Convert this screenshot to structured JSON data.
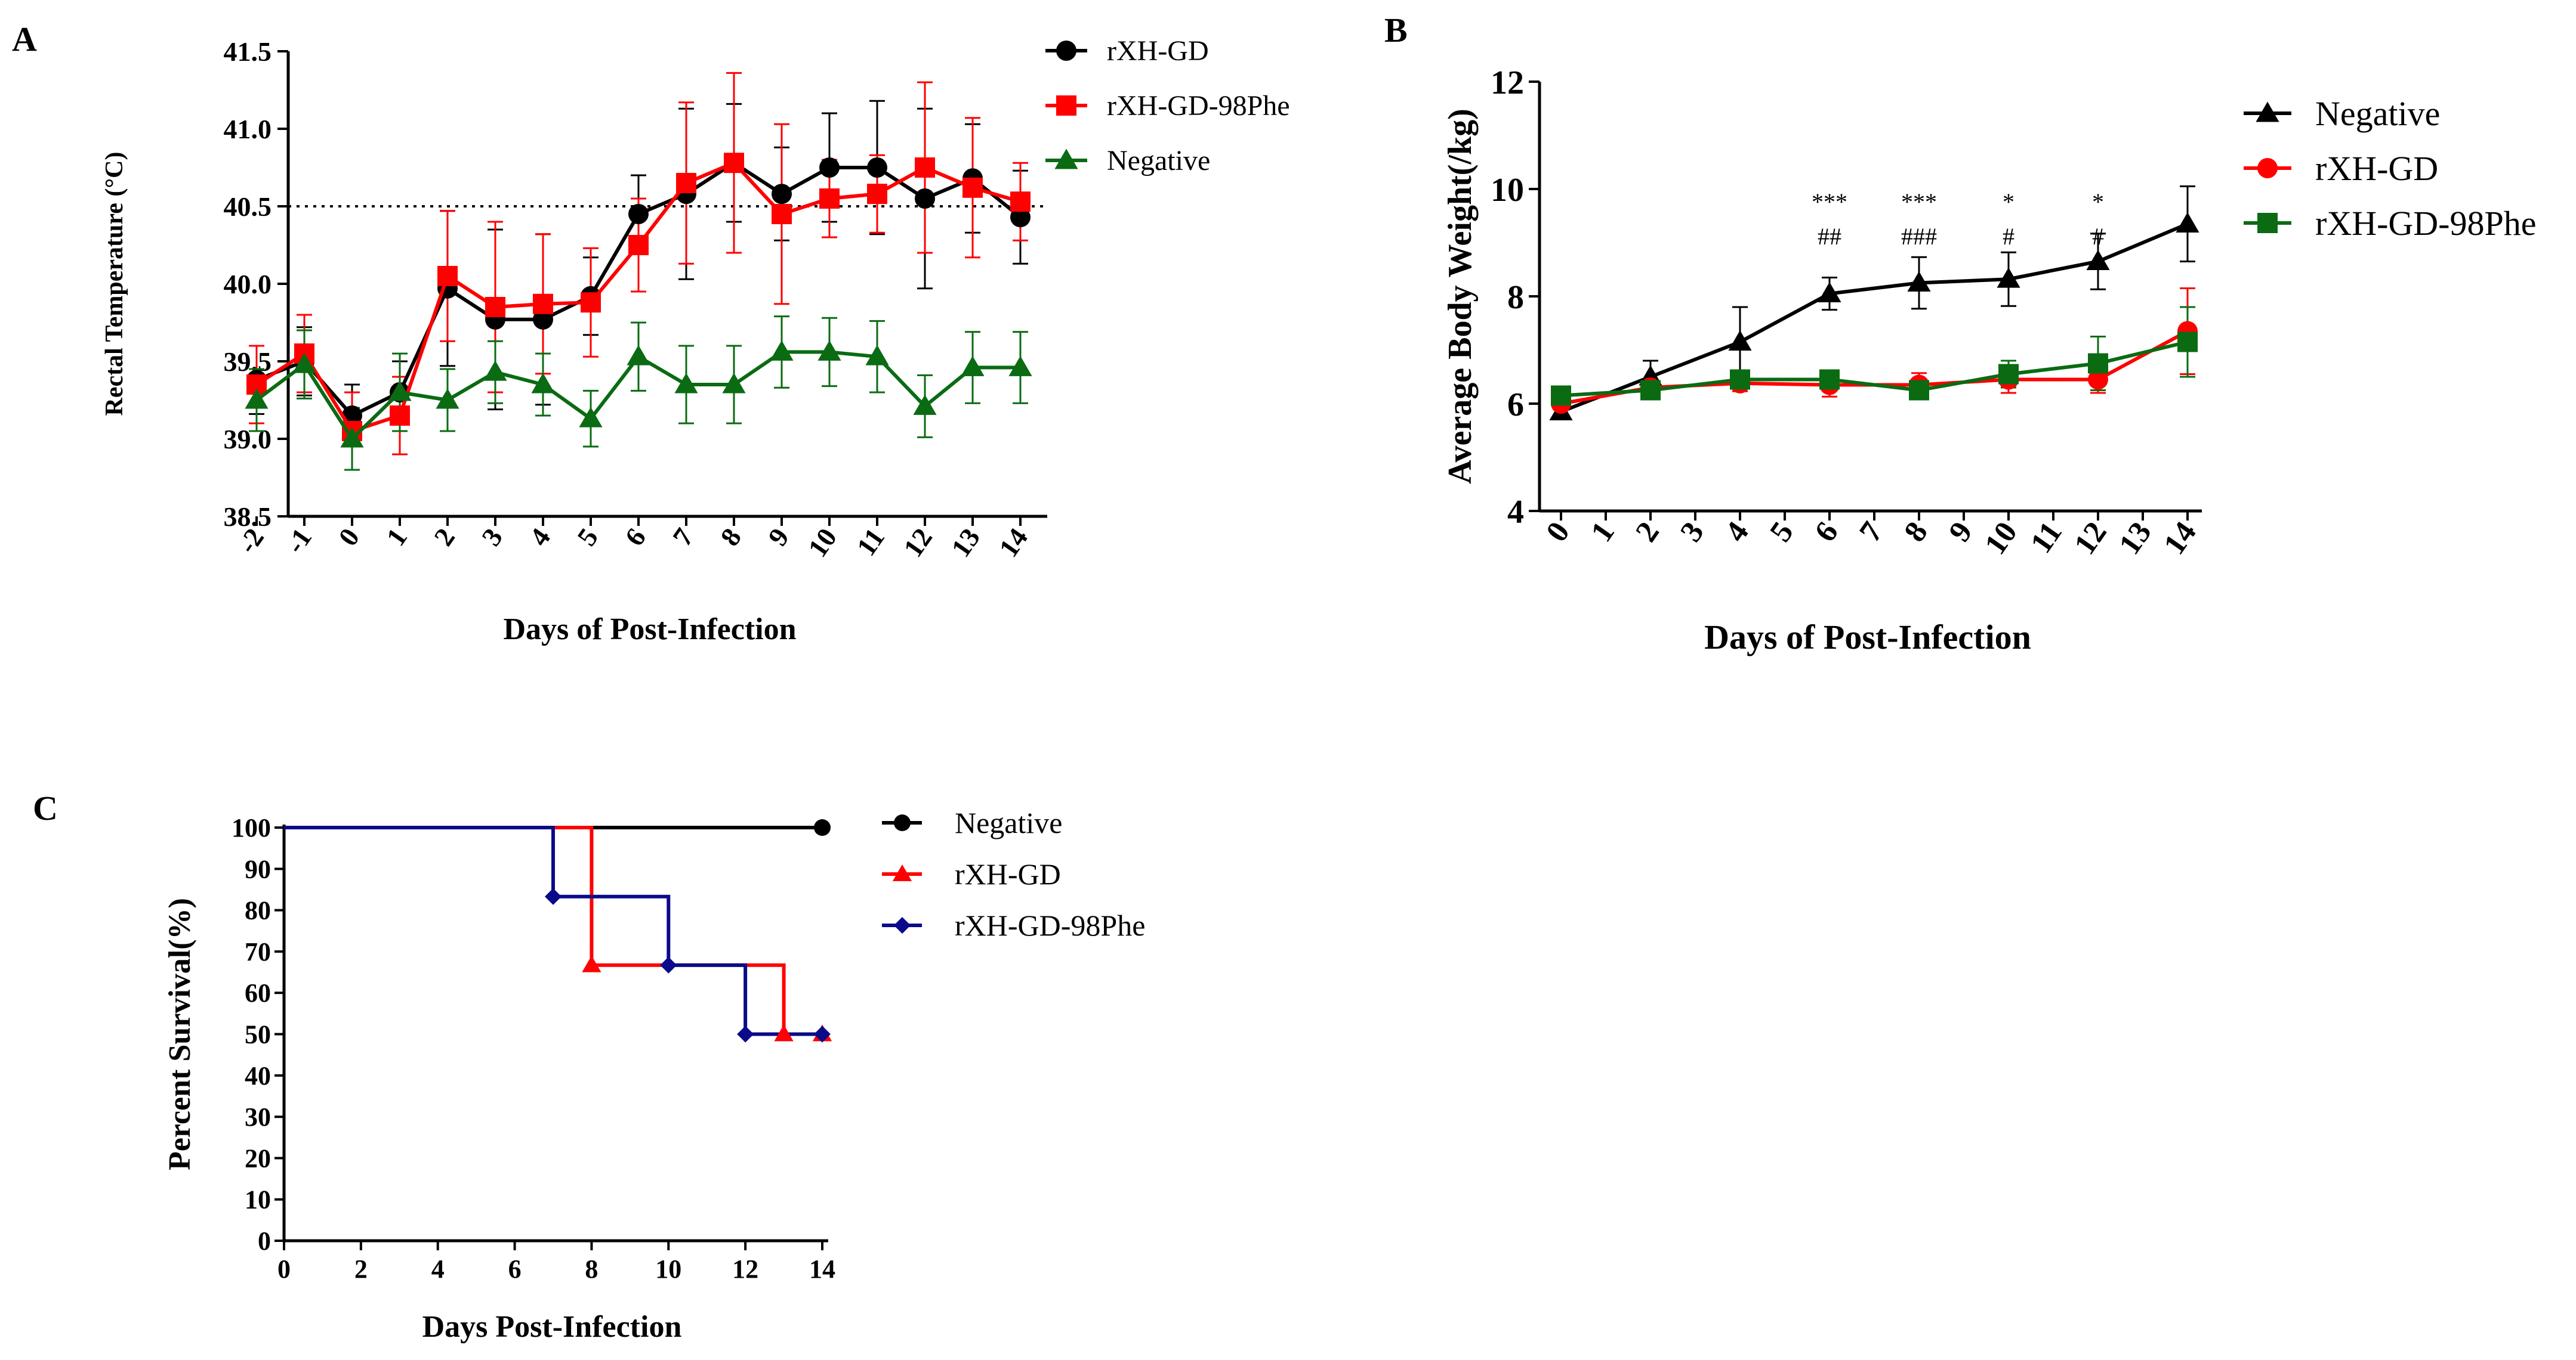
{
  "figure": {
    "colors": {
      "black": "#000000",
      "red": "#ff0000",
      "green": "#0a6b12",
      "navy": "#0a0a8a"
    }
  },
  "chart_data": [
    {
      "panel": "A",
      "type": "line",
      "title": "",
      "xlabel": "Days of Post-Infection",
      "ylabel": "Rectal Temperature (°C)",
      "categories": [
        "-2",
        "-1",
        "0",
        "1",
        "2",
        "3",
        "4",
        "5",
        "6",
        "7",
        "8",
        "9",
        "10",
        "11",
        "12",
        "13",
        "14"
      ],
      "ylim": [
        38.5,
        41.5
      ],
      "yticks": [
        38.5,
        39.0,
        39.5,
        40.0,
        40.5,
        41.0,
        41.5
      ],
      "ytick_labels": [
        "38.5",
        "39.0",
        "39.5",
        "40.0",
        "40.5",
        "41.0",
        "41.5"
      ],
      "reference_line": 40.5,
      "legend_position": "top-right",
      "series": [
        {
          "name": "rXH-GD",
          "color": "#000000",
          "marker": "circle",
          "values": [
            39.38,
            39.5,
            39.15,
            39.3,
            39.97,
            39.77,
            39.77,
            39.92,
            40.45,
            40.58,
            40.78,
            40.58,
            40.75,
            40.75,
            40.55,
            40.68,
            40.43
          ],
          "errors": [
            0.22,
            0.22,
            0.2,
            0.2,
            0.5,
            0.58,
            0.55,
            0.25,
            0.25,
            0.55,
            0.38,
            0.3,
            0.35,
            0.43,
            0.58,
            0.35,
            0.3
          ]
        },
        {
          "name": "rXH-GD-98Phe",
          "color": "#ff0000",
          "marker": "square",
          "values": [
            39.35,
            39.55,
            39.05,
            39.15,
            40.05,
            39.85,
            39.87,
            39.88,
            40.25,
            40.65,
            40.78,
            40.45,
            40.55,
            40.58,
            40.75,
            40.62,
            40.53
          ],
          "errors": [
            0.25,
            0.25,
            0.25,
            0.25,
            0.42,
            0.55,
            0.45,
            0.35,
            0.3,
            0.52,
            0.58,
            0.58,
            0.25,
            0.25,
            0.55,
            0.45,
            0.25
          ]
        },
        {
          "name": "Negative",
          "color": "#0a6b12",
          "marker": "triangle",
          "values": [
            39.25,
            39.48,
            39.0,
            39.3,
            39.25,
            39.43,
            39.35,
            39.13,
            39.53,
            39.35,
            39.35,
            39.56,
            39.56,
            39.53,
            39.21,
            39.46,
            39.46
          ],
          "errors": [
            0.2,
            0.22,
            0.2,
            0.25,
            0.2,
            0.2,
            0.2,
            0.18,
            0.22,
            0.25,
            0.25,
            0.23,
            0.22,
            0.23,
            0.2,
            0.23,
            0.23
          ]
        }
      ]
    },
    {
      "panel": "B",
      "type": "line",
      "title": "",
      "xlabel": "Days of Post-Infection",
      "ylabel": "Average Body Weight(/kg)",
      "categories": [
        "0",
        "1",
        "2",
        "3",
        "4",
        "5",
        "6",
        "7",
        "8",
        "9",
        "10",
        "11",
        "12",
        "13",
        "14"
      ],
      "ylim": [
        4,
        12
      ],
      "yticks": [
        4,
        6,
        8,
        10,
        12
      ],
      "ytick_labels": [
        "4",
        "6",
        "8",
        "10",
        "12"
      ],
      "legend_position": "top-right",
      "annotations": [
        {
          "day": 6,
          "top": "***",
          "bottom": "##"
        },
        {
          "day": 8,
          "top": "***",
          "bottom": "###"
        },
        {
          "day": 10,
          "top": "*",
          "bottom": "#"
        },
        {
          "day": 12,
          "top": "*",
          "bottom": "#"
        }
      ],
      "series": [
        {
          "name": "Negative",
          "color": "#000000",
          "marker": "triangle",
          "x": [
            0,
            2,
            4,
            6,
            8,
            10,
            12,
            14
          ],
          "values": [
            5.85,
            6.5,
            7.15,
            8.05,
            8.25,
            8.32,
            8.65,
            9.35
          ],
          "errors": [
            0.12,
            0.3,
            0.65,
            0.3,
            0.48,
            0.5,
            0.52,
            0.7
          ]
        },
        {
          "name": "rXH-GD",
          "color": "#ff0000",
          "marker": "circle",
          "x": [
            0,
            2,
            4,
            6,
            8,
            10,
            12,
            14
          ],
          "values": [
            6.0,
            6.3,
            6.38,
            6.35,
            6.35,
            6.45,
            6.45,
            7.35
          ],
          "errors": [
            0.1,
            0.15,
            0.15,
            0.22,
            0.22,
            0.25,
            0.25,
            0.8
          ]
        },
        {
          "name": "rXH-GD-98Phe",
          "color": "#0a6b12",
          "marker": "square",
          "x": [
            0,
            2,
            4,
            6,
            8,
            10,
            12,
            14
          ],
          "values": [
            6.15,
            6.25,
            6.45,
            6.45,
            6.25,
            6.55,
            6.75,
            7.15
          ],
          "errors": [
            0.1,
            0.12,
            0.12,
            0.12,
            0.1,
            0.25,
            0.5,
            0.65
          ]
        }
      ]
    },
    {
      "panel": "C",
      "type": "line",
      "title": "",
      "xlabel": "Days Post-Infection",
      "ylabel": "Percent Survival(%)",
      "xlim": [
        0,
        14
      ],
      "xticks": [
        0,
        2,
        4,
        6,
        8,
        10,
        12,
        14
      ],
      "xtick_labels": [
        "0",
        "2",
        "4",
        "6",
        "8",
        "10",
        "12",
        "14"
      ],
      "ylim": [
        0,
        100
      ],
      "yticks": [
        0,
        10,
        20,
        30,
        40,
        50,
        60,
        70,
        80,
        90,
        100
      ],
      "ytick_labels": [
        "0",
        "10",
        "20",
        "30",
        "40",
        "50",
        "60",
        "70",
        "80",
        "90",
        "100"
      ],
      "legend_position": "top-right",
      "series": [
        {
          "name": "Negative",
          "color": "#000000",
          "marker": "circle",
          "steps": [
            [
              0,
              100
            ],
            [
              14,
              100
            ]
          ],
          "markers": [
            [
              14,
              100
            ]
          ]
        },
        {
          "name": "rXH-GD",
          "color": "#ff0000",
          "marker": "triangle",
          "steps": [
            [
              0,
              100
            ],
            [
              8,
              100
            ],
            [
              8,
              66.7
            ],
            [
              13,
              66.7
            ],
            [
              13,
              50
            ],
            [
              14,
              50
            ]
          ],
          "markers": [
            [
              8,
              66.7
            ],
            [
              13,
              50
            ],
            [
              14,
              50
            ]
          ]
        },
        {
          "name": "rXH-GD-98Phe",
          "color": "#0a0a8a",
          "marker": "diamond",
          "steps": [
            [
              0,
              100
            ],
            [
              7,
              100
            ],
            [
              7,
              83.3
            ],
            [
              10,
              83.3
            ],
            [
              10,
              66.7
            ],
            [
              12,
              66.7
            ],
            [
              12,
              50
            ],
            [
              14,
              50
            ]
          ],
          "markers": [
            [
              7,
              83.3
            ],
            [
              10,
              66.7
            ],
            [
              12,
              50
            ],
            [
              14,
              50
            ]
          ]
        }
      ]
    }
  ]
}
